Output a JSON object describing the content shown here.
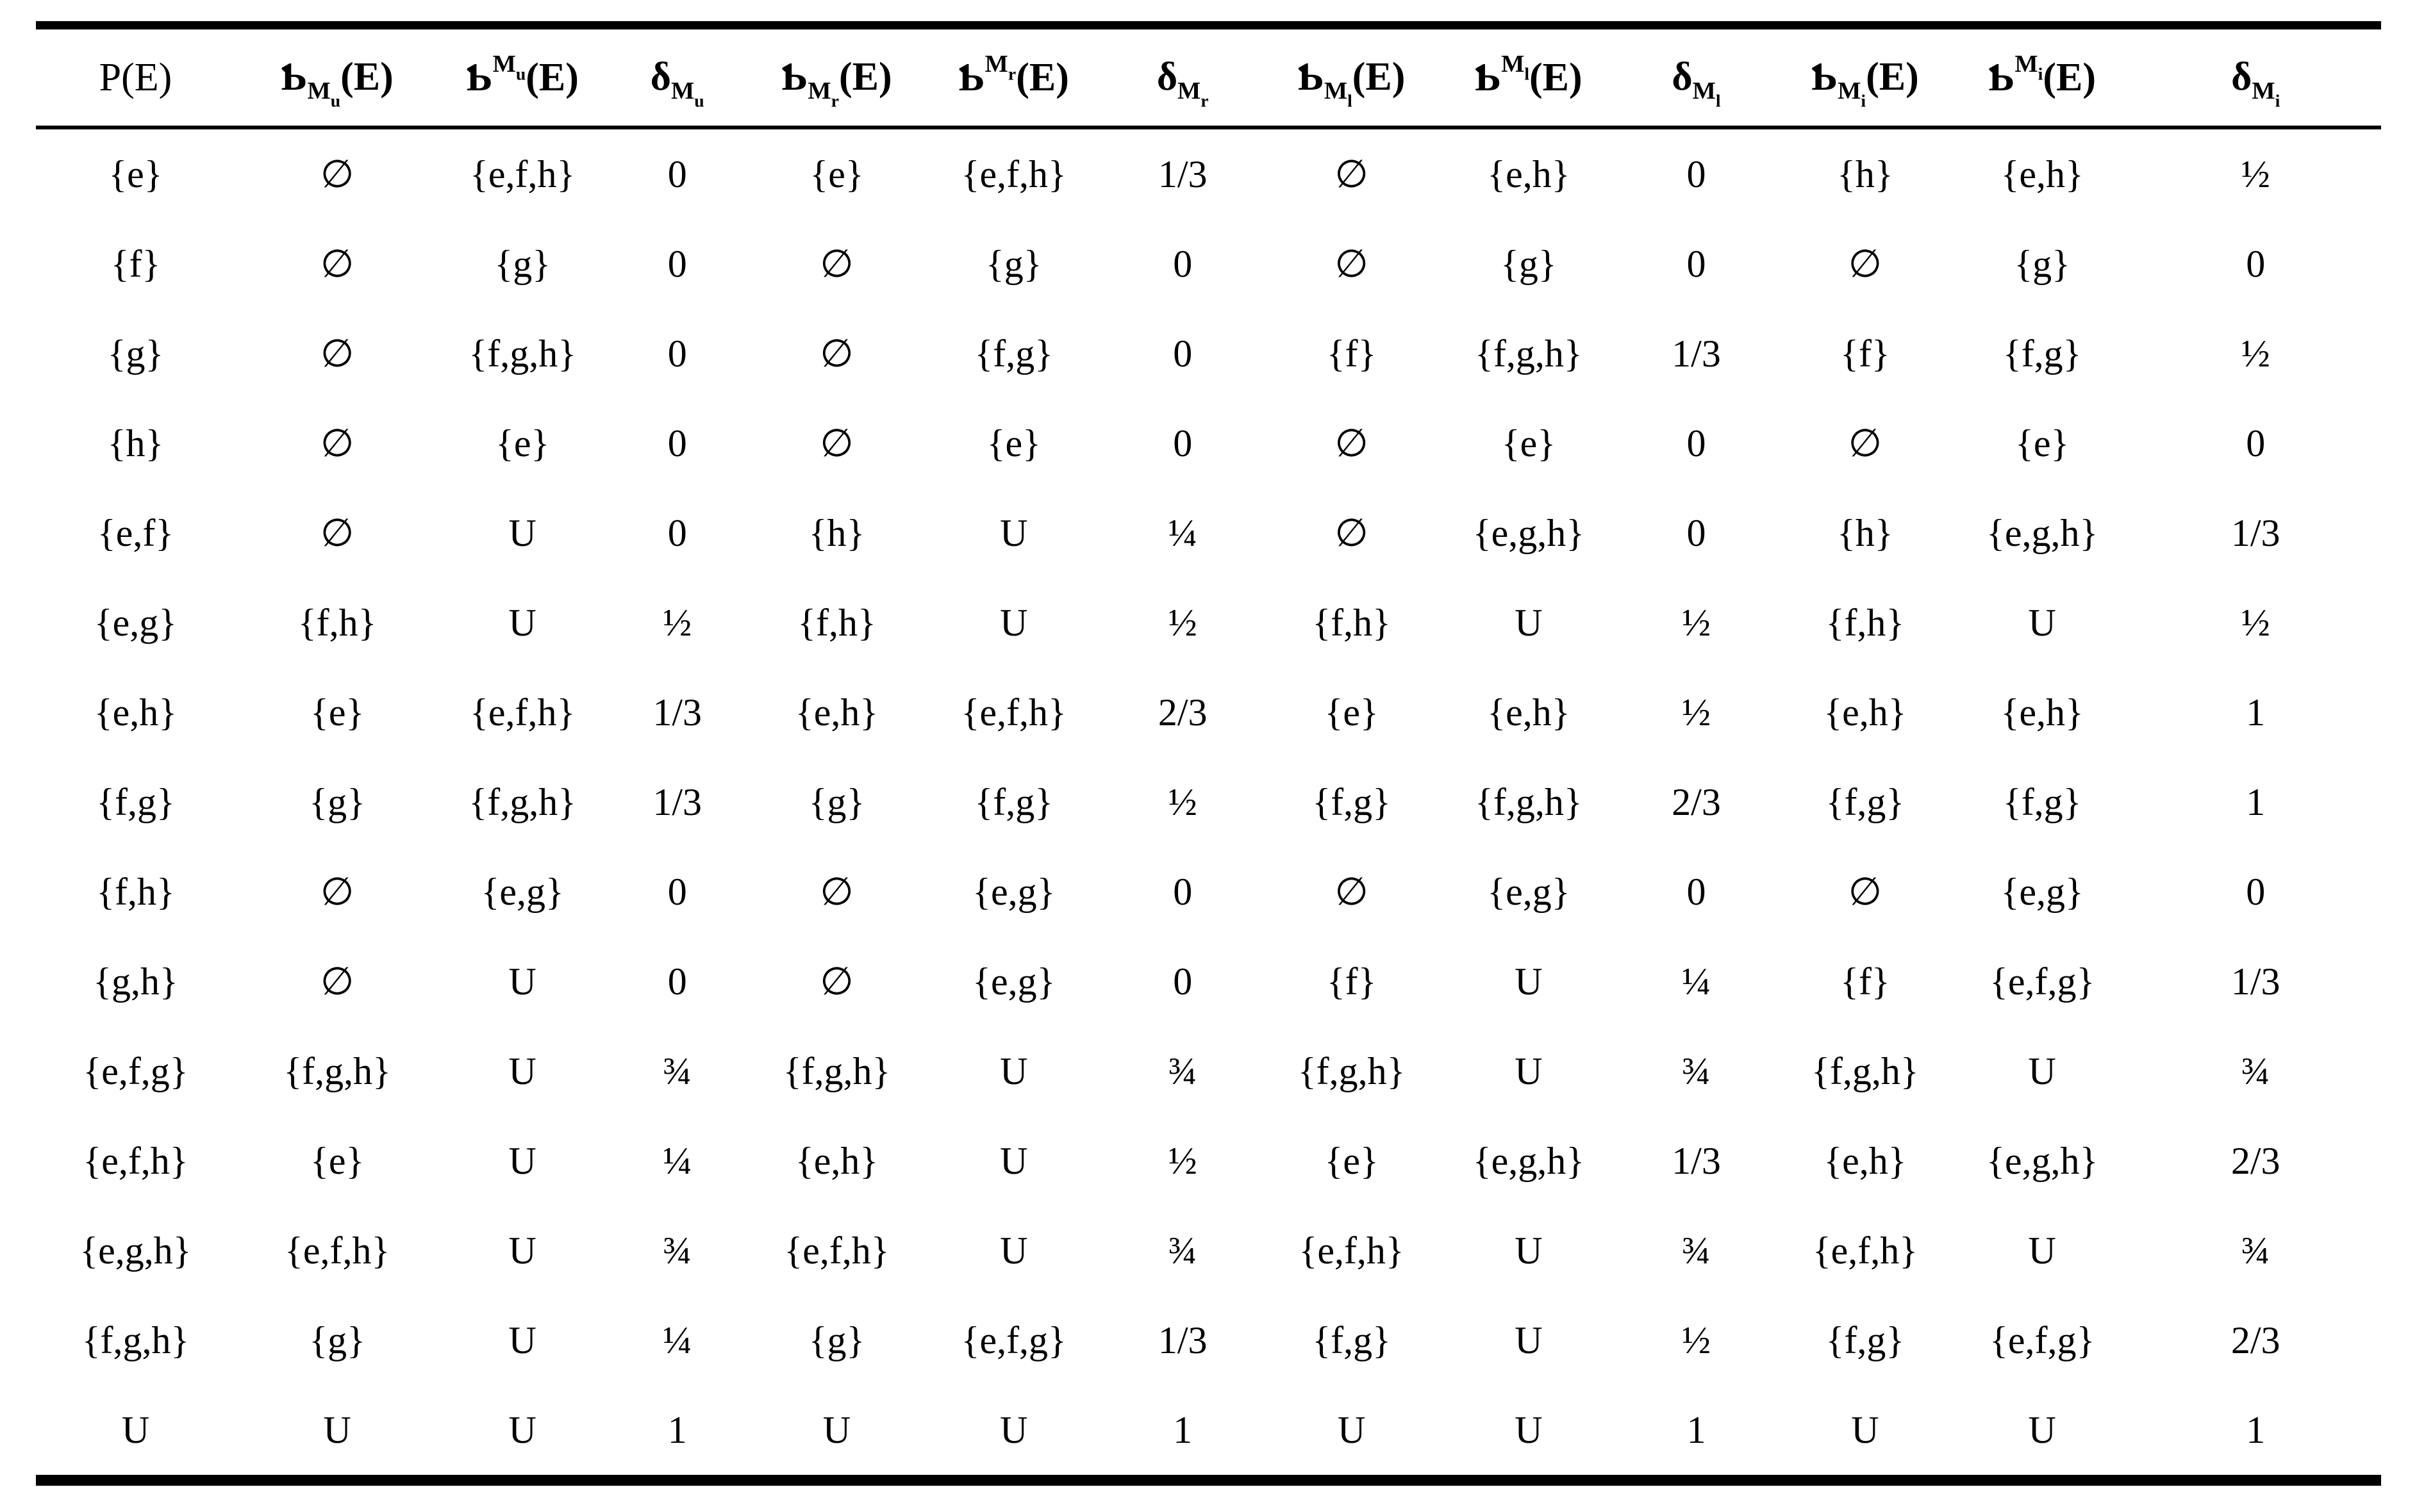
{
  "table": {
    "columns": [
      {
        "kind": "plain",
        "label": "P(E)"
      },
      {
        "kind": "script",
        "symbol": "Ƅ",
        "script": "sub",
        "script_text": "M",
        "script_sub": "u",
        "arg": "(E)"
      },
      {
        "kind": "script",
        "symbol": "Ƅ",
        "script": "sup",
        "script_text": "M",
        "script_sub": "u",
        "arg": "(E)"
      },
      {
        "kind": "script",
        "symbol": "δ",
        "script": "sub",
        "script_text": "M",
        "script_sub": "u",
        "arg": ""
      },
      {
        "kind": "script",
        "symbol": "Ƅ",
        "script": "sub",
        "script_text": "M",
        "script_sub": "r",
        "arg": "(E)"
      },
      {
        "kind": "script",
        "symbol": "Ƅ",
        "script": "sup",
        "script_text": "M",
        "script_sub": "r",
        "arg": "(E)"
      },
      {
        "kind": "script",
        "symbol": "δ",
        "script": "sub",
        "script_text": "M",
        "script_sub": "r",
        "arg": ""
      },
      {
        "kind": "script",
        "symbol": "Ƅ",
        "script": "sub",
        "script_text": "M",
        "script_sub": "l",
        "arg": "(E)"
      },
      {
        "kind": "script",
        "symbol": "Ƅ",
        "script": "sup",
        "script_text": "M",
        "script_sub": "l",
        "arg": "(E)"
      },
      {
        "kind": "script",
        "symbol": "δ",
        "script": "sub",
        "script_text": "M",
        "script_sub": "l",
        "arg": ""
      },
      {
        "kind": "script",
        "symbol": "Ƅ",
        "script": "sub",
        "script_text": "M",
        "script_sub": "i",
        "arg": "(E)"
      },
      {
        "kind": "script",
        "symbol": "Ƅ",
        "script": "sup",
        "script_text": "M",
        "script_sub": "i",
        "arg": "(E)"
      },
      {
        "kind": "script",
        "symbol": "δ",
        "script": "sub",
        "script_text": "M",
        "script_sub": "i",
        "arg": ""
      }
    ],
    "column_widths_pct": [
      8.5,
      8.7,
      7.1,
      6.1,
      7.5,
      7.6,
      6.8,
      7.6,
      7.5,
      6.8,
      7.6,
      7.5,
      10.7
    ],
    "rows": [
      [
        "{e}",
        "∅",
        "{e,f,h}",
        "0",
        "{e}",
        "{e,f,h}",
        "1/3",
        "∅",
        "{e,h}",
        "0",
        "{h}",
        "{e,h}",
        "½"
      ],
      [
        "{f}",
        "∅",
        "{g}",
        "0",
        "∅",
        "{g}",
        "0",
        "∅",
        "{g}",
        "0",
        "∅",
        "{g}",
        "0"
      ],
      [
        "{g}",
        "∅",
        "{f,g,h}",
        "0",
        "∅",
        "{f,g}",
        "0",
        "{f}",
        "{f,g,h}",
        "1/3",
        "{f}",
        "{f,g}",
        "½"
      ],
      [
        "{h}",
        "∅",
        "{e}",
        "0",
        "∅",
        "{e}",
        "0",
        "∅",
        "{e}",
        "0",
        "∅",
        "{e}",
        "0"
      ],
      [
        "{e,f}",
        "∅",
        "U",
        "0",
        "{h}",
        "U",
        "¼",
        "∅",
        "{e,g,h}",
        "0",
        "{h}",
        "{e,g,h}",
        "1/3"
      ],
      [
        "{e,g}",
        "{f,h}",
        "U",
        "½",
        "{f,h}",
        "U",
        "½",
        "{f,h}",
        "U",
        "½",
        "{f,h}",
        "U",
        "½"
      ],
      [
        "{e,h}",
        "{e}",
        "{e,f,h}",
        "1/3",
        "{e,h}",
        "{e,f,h}",
        "2/3",
        "{e}",
        "{e,h}",
        "½",
        "{e,h}",
        "{e,h}",
        "1"
      ],
      [
        "{f,g}",
        "{g}",
        "{f,g,h}",
        "1/3",
        "{g}",
        "{f,g}",
        "½",
        "{f,g}",
        "{f,g,h}",
        "2/3",
        "{f,g}",
        "{f,g}",
        "1"
      ],
      [
        "{f,h}",
        "∅",
        "{e,g}",
        "0",
        "∅",
        "{e,g}",
        "0",
        "∅",
        "{e,g}",
        "0",
        "∅",
        "{e,g}",
        "0"
      ],
      [
        "{g,h}",
        "∅",
        "U",
        "0",
        "∅",
        "{e,g}",
        "0",
        "{f}",
        "U",
        "¼",
        "{f}",
        "{e,f,g}",
        "1/3"
      ],
      [
        "{e,f,g}",
        "{f,g,h}",
        "U",
        "¾",
        "{f,g,h}",
        "U",
        "¾",
        "{f,g,h}",
        "U",
        "¾",
        "{f,g,h}",
        "U",
        "¾"
      ],
      [
        "{e,f,h}",
        "{e}",
        "U",
        "¼",
        "{e,h}",
        "U",
        "½",
        "{e}",
        "{e,g,h}",
        "1/3",
        "{e,h}",
        "{e,g,h}",
        "2/3"
      ],
      [
        "{e,g,h}",
        "{e,f,h}",
        "U",
        "¾",
        "{e,f,h}",
        "U",
        "¾",
        "{e,f,h}",
        "U",
        "¾",
        "{e,f,h}",
        "U",
        "¾"
      ],
      [
        "{f,g,h}",
        "{g}",
        "U",
        "¼",
        "{g}",
        "{e,f,g}",
        "1/3",
        "{f,g}",
        "U",
        "½",
        "{f,g}",
        "{e,f,g}",
        "2/3"
      ],
      [
        "U",
        "U",
        "U",
        "1",
        "U",
        "U",
        "1",
        "U",
        "U",
        "1",
        "U",
        "U",
        "1"
      ]
    ]
  },
  "colors": {
    "text": "#000000",
    "background": "#ffffff",
    "rule": "#000000"
  }
}
